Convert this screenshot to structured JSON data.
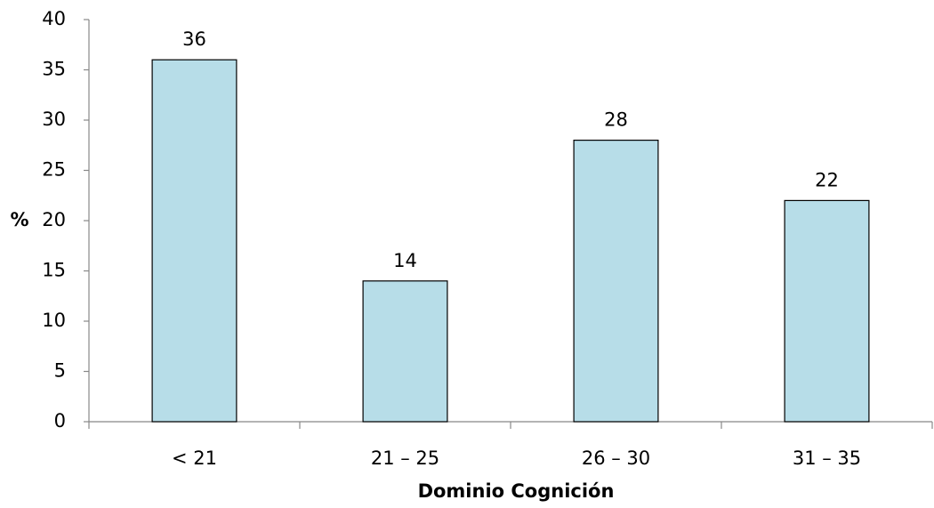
{
  "chart_data": {
    "type": "bar",
    "x_label": "Dominio Cognición",
    "y_label": "%",
    "categories": [
      "< 21",
      "21 – 25",
      "26 – 30",
      "31 – 35"
    ],
    "values": [
      36,
      14,
      28,
      22
    ],
    "color": "#b7dde8",
    "ylim": [
      0,
      40
    ],
    "yticks": [
      0,
      5,
      10,
      15,
      20,
      25,
      30,
      35,
      40
    ],
    "grid": false
  }
}
